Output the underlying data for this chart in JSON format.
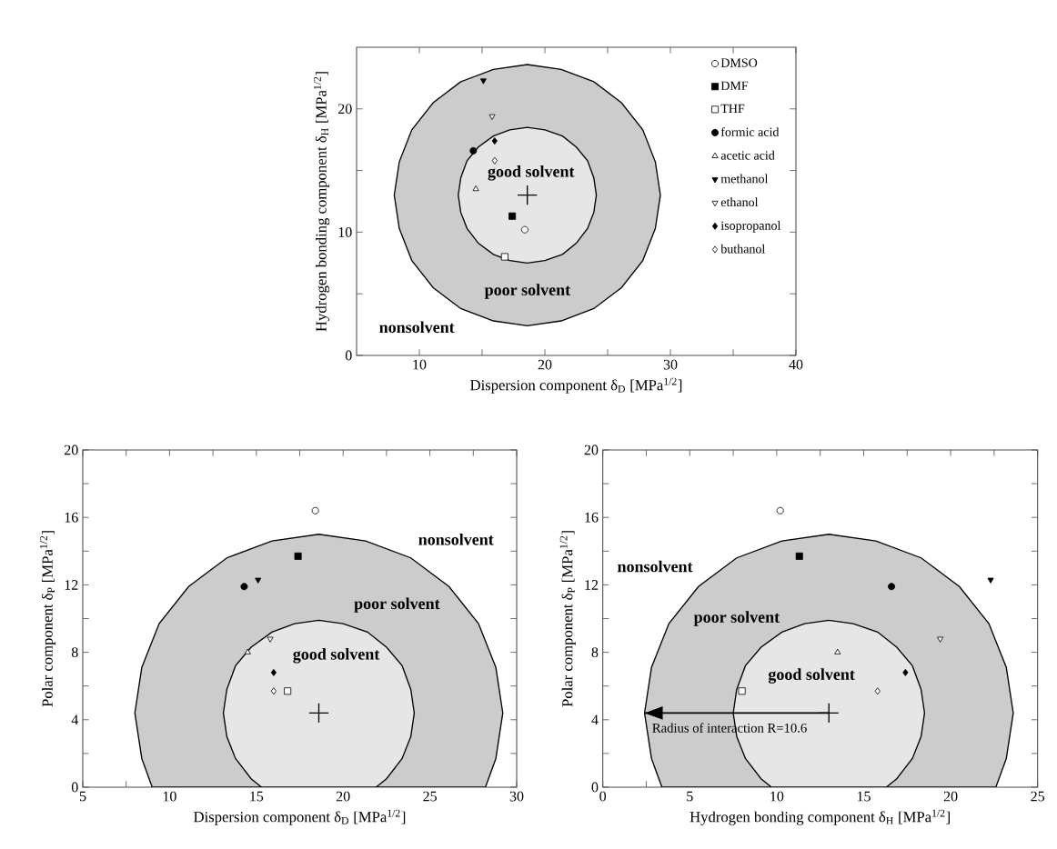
{
  "chart_data": [
    {
      "type": "scatter",
      "xlabel": "Dispersion component δ$_{D}$ [MPa$^{1/2}$]",
      "ylabel": "Hydrogen bonding component δ$_{H}$ [MPa$^{1/2}$]",
      "xlim": [
        5,
        40
      ],
      "ylim": [
        0,
        25
      ],
      "xticks": [
        10,
        20,
        30,
        40,
        {
          "value": 15,
          "label": null
        },
        {
          "value": 25,
          "label": null
        },
        {
          "value": 35,
          "label": null
        }
      ],
      "yticks": [
        0,
        10,
        20,
        {
          "value": 5,
          "label": null
        },
        {
          "value": 15,
          "label": null
        }
      ],
      "legend": "top right",
      "series": [
        {
          "type": "area",
          "color": "#cccccc",
          "x": [
            29.2,
            28.8,
            27.8,
            26.1,
            23.9,
            21.3,
            18.6,
            15.9,
            13.3,
            11.1,
            9.4,
            8.4,
            8.0,
            8.4,
            9.4,
            11.1,
            13.3,
            15.9,
            18.6,
            21.3,
            23.9,
            26.1,
            27.8,
            28.8
          ],
          "values": [
            13.0,
            15.7,
            18.3,
            20.5,
            22.2,
            23.2,
            23.6,
            23.2,
            22.2,
            20.5,
            18.3,
            15.7,
            13.0,
            10.3,
            7.7,
            5.5,
            3.8,
            2.8,
            2.4,
            2.8,
            3.8,
            5.5,
            7.7,
            10.3
          ]
        },
        {
          "type": "area",
          "color": "#e6e6e6",
          "x": [
            24.1,
            23.9,
            23.4,
            22.5,
            21.4,
            20.0,
            18.6,
            17.2,
            15.9,
            14.7,
            13.8,
            13.3,
            13.1,
            13.3,
            13.8,
            14.7,
            15.9,
            17.2,
            18.6,
            20.0,
            21.4,
            22.5,
            23.4,
            23.9
          ],
          "values": [
            13.0,
            14.4,
            15.8,
            16.9,
            17.8,
            18.3,
            18.5,
            18.3,
            17.8,
            16.9,
            15.8,
            14.4,
            13.0,
            11.6,
            10.3,
            9.1,
            8.2,
            7.7,
            7.5,
            7.7,
            8.2,
            9.1,
            10.3,
            11.6
          ]
        },
        {
          "type": "scatter",
          "marker": "cross",
          "color": "#000000",
          "x": [
            18.6
          ],
          "values": [
            13.0
          ]
        },
        {
          "name": "DMSO",
          "type": "scatter",
          "marker": "circle",
          "color": "#ffffff",
          "x": [
            18.4
          ],
          "values": [
            10.2
          ]
        },
        {
          "name": "DMF",
          "type": "scatter",
          "marker": "square",
          "color": "#000000",
          "x": [
            17.4
          ],
          "values": [
            11.3
          ]
        },
        {
          "name": "THF",
          "type": "scatter",
          "marker": "square",
          "color": "#ffffff",
          "x": [
            16.8
          ],
          "values": [
            8.0
          ]
        },
        {
          "name": "formic acid",
          "type": "scatter",
          "marker": "circle",
          "color": "#000000",
          "x": [
            14.3
          ],
          "values": [
            16.6
          ]
        },
        {
          "name": "acetic acid",
          "type": "scatter",
          "marker": "triangle",
          "color": "#ffffff",
          "x": [
            14.5
          ],
          "values": [
            13.5
          ]
        },
        {
          "name": "methanol",
          "type": "scatter",
          "marker": "triangle-down",
          "color": "#000000",
          "x": [
            15.1
          ],
          "values": [
            22.3
          ]
        },
        {
          "name": "ethanol",
          "type": "scatter",
          "marker": "triangle-down",
          "color": "#ffffff",
          "x": [
            15.8
          ],
          "values": [
            19.4
          ]
        },
        {
          "name": "isopropanol",
          "type": "scatter",
          "marker": "diamond",
          "color": "#000000",
          "x": [
            16.0
          ],
          "values": [
            17.4
          ]
        },
        {
          "name": "buthanol",
          "type": "scatter",
          "marker": "diamond",
          "color": "#ffffff",
          "x": [
            16.0
          ],
          "values": [
            15.8
          ]
        }
      ],
      "annotations": [
        "good solvent",
        "poor solvent",
        "nonsolvent"
      ]
    },
    {
      "type": "scatter",
      "xlabel": "Dispersion component δ$_{D}$ [MPa$^{1/2}$]",
      "ylabel": "Polar component δ$_{P}$ [MPa$^{1/2}$]",
      "xlim": [
        5,
        30
      ],
      "ylim": [
        0,
        20
      ],
      "xticks": [
        5,
        10,
        15,
        20,
        25,
        30,
        {
          "value": 7.5,
          "label": null
        },
        {
          "value": 12.5,
          "label": null
        },
        {
          "value": 17.5,
          "label": null
        },
        {
          "value": 22.5,
          "label": null
        },
        {
          "value": 27.5,
          "label": null
        }
      ],
      "yticks": [
        0,
        4,
        8,
        12,
        16,
        20,
        {
          "value": 2,
          "label": null
        },
        {
          "value": 6,
          "label": null
        },
        {
          "value": 10,
          "label": null
        },
        {
          "value": 14,
          "label": null
        },
        {
          "value": 18,
          "label": null
        }
      ],
      "series": [
        {
          "type": "area",
          "color": "#cccccc",
          "x": [
            28.2,
            28.8,
            29.2,
            28.8,
            27.8,
            26.1,
            23.9,
            21.3,
            18.6,
            15.9,
            13.3,
            11.1,
            9.4,
            8.4,
            8.0,
            8.4,
            9.0
          ],
          "values": [
            0,
            1.7,
            4.4,
            7.1,
            9.7,
            11.9,
            13.6,
            14.6,
            15.0,
            14.6,
            13.6,
            11.9,
            9.7,
            7.1,
            4.4,
            1.7,
            0
          ]
        },
        {
          "type": "area",
          "color": "#e6e6e6",
          "x": [
            21.9,
            22.5,
            23.4,
            23.9,
            24.1,
            23.9,
            23.4,
            22.5,
            21.4,
            20.0,
            18.6,
            17.2,
            15.9,
            14.7,
            13.8,
            13.3,
            13.1,
            13.3,
            13.8,
            14.7,
            15.3
          ],
          "values": [
            0,
            0.5,
            1.7,
            3.0,
            4.4,
            5.8,
            7.2,
            8.3,
            9.2,
            9.7,
            9.9,
            9.7,
            9.2,
            8.3,
            7.2,
            5.8,
            4.4,
            3.0,
            1.7,
            0.5,
            0
          ]
        },
        {
          "type": "scatter",
          "marker": "cross",
          "color": "#000000",
          "x": [
            18.6
          ],
          "values": [
            4.4
          ]
        },
        {
          "type": "scatter",
          "marker": "circle",
          "color": "#ffffff",
          "x": [
            18.4
          ],
          "values": [
            16.4
          ]
        },
        {
          "type": "scatter",
          "marker": "square",
          "color": "#000000",
          "x": [
            17.4
          ],
          "values": [
            13.7
          ]
        },
        {
          "type": "scatter",
          "marker": "square",
          "color": "#ffffff",
          "x": [
            16.8
          ],
          "values": [
            5.7
          ]
        },
        {
          "type": "scatter",
          "marker": "circle",
          "color": "#000000",
          "x": [
            14.3
          ],
          "values": [
            11.9
          ]
        },
        {
          "type": "scatter",
          "marker": "triangle",
          "color": "#ffffff",
          "x": [
            14.5
          ],
          "values": [
            8.0
          ]
        },
        {
          "type": "scatter",
          "marker": "triangle-down",
          "color": "#000000",
          "x": [
            15.1
          ],
          "values": [
            12.3
          ]
        },
        {
          "type": "scatter",
          "marker": "triangle-down",
          "color": "#ffffff",
          "x": [
            15.8
          ],
          "values": [
            8.8
          ]
        },
        {
          "type": "scatter",
          "marker": "diamond",
          "color": "#000000",
          "x": [
            16.0
          ],
          "values": [
            6.8
          ]
        },
        {
          "type": "scatter",
          "marker": "diamond",
          "color": "#ffffff",
          "x": [
            16.0
          ],
          "values": [
            5.7
          ]
        }
      ],
      "annotations": [
        "nonsolvent",
        "poor solvent",
        "good solvent"
      ]
    },
    {
      "type": "scatter",
      "xlabel": "Hydrogen bonding component δ$_{H}$ [MPa$^{1/2}$]",
      "ylabel": "Polar component δ$_{P}$ [MPa$^{1/2}$]",
      "xlim": [
        0,
        25
      ],
      "ylim": [
        0,
        20
      ],
      "xticks": [
        0,
        5,
        10,
        15,
        20,
        25,
        {
          "value": 2.5,
          "label": null
        },
        {
          "value": 7.5,
          "label": null
        },
        {
          "value": 12.5,
          "label": null
        },
        {
          "value": 17.5,
          "label": null
        },
        {
          "value": 22.5,
          "label": null
        }
      ],
      "yticks": [
        0,
        4,
        8,
        12,
        16,
        20,
        {
          "value": 2,
          "label": null
        },
        {
          "value": 6,
          "label": null
        },
        {
          "value": 10,
          "label": null
        },
        {
          "value": 14,
          "label": null
        },
        {
          "value": 18,
          "label": null
        }
      ],
      "series": [
        {
          "type": "area",
          "color": "#cccccc",
          "x": [
            22.6,
            23.2,
            23.6,
            23.2,
            22.2,
            20.5,
            18.3,
            15.7,
            13.0,
            10.3,
            7.7,
            5.5,
            3.8,
            2.8,
            2.4,
            2.8,
            3.4
          ],
          "values": [
            0,
            1.7,
            4.4,
            7.1,
            9.7,
            11.9,
            13.6,
            14.6,
            15.0,
            14.6,
            13.6,
            11.9,
            9.7,
            7.1,
            4.4,
            1.7,
            0
          ]
        },
        {
          "type": "area",
          "color": "#e6e6e6",
          "x": [
            16.3,
            16.9,
            17.8,
            18.3,
            18.5,
            18.3,
            17.8,
            16.9,
            15.8,
            14.4,
            13.0,
            11.6,
            10.3,
            9.1,
            8.2,
            7.7,
            7.5,
            7.7,
            8.2,
            9.1,
            9.7
          ],
          "values": [
            0,
            0.5,
            1.7,
            3.0,
            4.4,
            5.8,
            7.2,
            8.3,
            9.2,
            9.7,
            9.9,
            9.7,
            9.2,
            8.3,
            7.2,
            5.8,
            4.4,
            3.0,
            1.7,
            0.5,
            0
          ]
        },
        {
          "type": "line",
          "color": "#000000",
          "x": [
            13.0,
            2.4
          ],
          "values": [
            4.4,
            4.4
          ]
        },
        {
          "type": "scatter",
          "marker": "cross",
          "color": "#000000",
          "x": [
            13.0
          ],
          "values": [
            4.4
          ]
        },
        {
          "type": "scatter",
          "marker": "circle",
          "color": "#ffffff",
          "x": [
            10.2
          ],
          "values": [
            16.4
          ]
        },
        {
          "type": "scatter",
          "marker": "square",
          "color": "#000000",
          "x": [
            11.3
          ],
          "values": [
            13.7
          ]
        },
        {
          "type": "scatter",
          "marker": "square",
          "color": "#ffffff",
          "x": [
            8.0
          ],
          "values": [
            5.7
          ]
        },
        {
          "type": "scatter",
          "marker": "circle",
          "color": "#000000",
          "x": [
            16.6
          ],
          "values": [
            11.9
          ]
        },
        {
          "type": "scatter",
          "marker": "triangle",
          "color": "#ffffff",
          "x": [
            13.5
          ],
          "values": [
            8.0
          ]
        },
        {
          "type": "scatter",
          "marker": "triangle-down",
          "color": "#000000",
          "x": [
            22.3
          ],
          "values": [
            12.3
          ]
        },
        {
          "type": "scatter",
          "marker": "triangle-down",
          "color": "#ffffff",
          "x": [
            19.4
          ],
          "values": [
            8.8
          ]
        },
        {
          "type": "scatter",
          "marker": "diamond",
          "color": "#000000",
          "x": [
            17.4
          ],
          "values": [
            6.8
          ]
        },
        {
          "type": "scatter",
          "marker": "diamond",
          "color": "#ffffff",
          "x": [
            15.8
          ],
          "values": [
            5.7
          ]
        }
      ],
      "annotations": [
        "nonsolvent",
        "poor solvent",
        "good solvent",
        "Radius of interaction R=10.6"
      ]
    }
  ]
}
